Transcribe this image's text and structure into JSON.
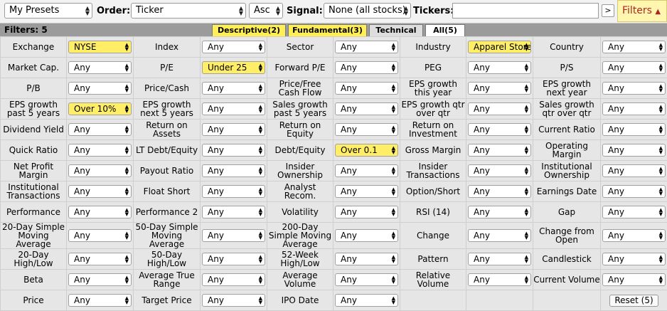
{
  "toolbar": {
    "presets": "My Presets",
    "order_label": "Order:",
    "order_value": "Ticker",
    "direction": "Asc",
    "signal_label": "Signal:",
    "signal_value": "None (all stocks)",
    "tickers_label": "Tickers:",
    "tickers_value": "",
    "go": ">",
    "filters_button": "Filters",
    "filters_accent": "#b0251f"
  },
  "tabs": {
    "count": "Filters: 5",
    "items": [
      "Descriptive(2)",
      "Fundamental(3)",
      "Technical",
      "All(5)"
    ]
  },
  "rows": [
    [
      [
        "Exchange",
        "NYSE",
        true
      ],
      [
        "Index",
        "Any",
        false
      ],
      [
        "Sector",
        "Any",
        false
      ],
      [
        "Industry",
        "Apparel Stores",
        true
      ],
      [
        "Country",
        "Any",
        false
      ]
    ],
    [
      [
        "Market Cap.",
        "Any",
        false
      ],
      [
        "P/E",
        "Under 25",
        true
      ],
      [
        "Forward P/E",
        "Any",
        false
      ],
      [
        "PEG",
        "Any",
        false
      ],
      [
        "P/S",
        "Any",
        false
      ]
    ],
    [
      [
        "P/B",
        "Any",
        false
      ],
      [
        "Price/Cash",
        "Any",
        false
      ],
      [
        "Price/Free Cash Flow",
        "Any",
        false
      ],
      [
        "EPS growth this year",
        "Any",
        false
      ],
      [
        "EPS growth next year",
        "Any",
        false
      ]
    ],
    [
      [
        "EPS growth past 5 years",
        "Over 10%",
        true
      ],
      [
        "EPS growth next 5 years",
        "Any",
        false
      ],
      [
        "Sales growth past 5 years",
        "Any",
        false
      ],
      [
        "EPS growth qtr over qtr",
        "Any",
        false
      ],
      [
        "Sales growth qtr over qtr",
        "Any",
        false
      ]
    ],
    [
      [
        "Dividend Yield",
        "Any",
        false
      ],
      [
        "Return on Assets",
        "Any",
        false
      ],
      [
        "Return on Equity",
        "Any",
        false
      ],
      [
        "Return on Investment",
        "Any",
        false
      ],
      [
        "Current Ratio",
        "Any",
        false
      ]
    ],
    [
      [
        "Quick Ratio",
        "Any",
        false
      ],
      [
        "LT Debt/Equity",
        "Any",
        false
      ],
      [
        "Debt/Equity",
        "Over 0.1",
        true
      ],
      [
        "Gross Margin",
        "Any",
        false
      ],
      [
        "Operating Margin",
        "Any",
        false
      ]
    ],
    [
      [
        "Net Profit Margin",
        "Any",
        false
      ],
      [
        "Payout Ratio",
        "Any",
        false
      ],
      [
        "Insider Ownership",
        "Any",
        false
      ],
      [
        "Insider Transactions",
        "Any",
        false
      ],
      [
        "Institutional Ownership",
        "Any",
        false
      ]
    ],
    [
      [
        "Institutional Transactions",
        "Any",
        false
      ],
      [
        "Float Short",
        "Any",
        false
      ],
      [
        "Analyst Recom.",
        "Any",
        false
      ],
      [
        "Option/Short",
        "Any",
        false
      ],
      [
        "Earnings Date",
        "Any",
        false
      ]
    ],
    [
      [
        "Performance",
        "Any",
        false
      ],
      [
        "Performance 2",
        "Any",
        false
      ],
      [
        "Volatility",
        "Any",
        false
      ],
      [
        "RSI (14)",
        "Any",
        false
      ],
      [
        "Gap",
        "Any",
        false
      ]
    ],
    [
      [
        "20-Day Simple Moving Average",
        "Any",
        false
      ],
      [
        "50-Day Simple Moving Average",
        "Any",
        false
      ],
      [
        "200-Day Simple Moving Average",
        "Any",
        false
      ],
      [
        "Change",
        "Any",
        false
      ],
      [
        "Change from Open",
        "Any",
        false
      ]
    ],
    [
      [
        "20-Day High/Low",
        "Any",
        false
      ],
      [
        "50-Day High/Low",
        "Any",
        false
      ],
      [
        "52-Week High/Low",
        "Any",
        false
      ],
      [
        "Pattern",
        "Any",
        false
      ],
      [
        "Candlestick",
        "Any",
        false
      ]
    ],
    [
      [
        "Beta",
        "Any",
        false
      ],
      [
        "Average True Range",
        "Any",
        false
      ],
      [
        "Average Volume",
        "Any",
        false
      ],
      [
        "Relative Volume",
        "Any",
        false
      ],
      [
        "Current Volume",
        "Any",
        false
      ]
    ],
    [
      [
        "Price",
        "Any",
        false
      ],
      [
        "Target Price",
        "Any",
        false
      ],
      [
        "IPO Date",
        "Any",
        false
      ],
      [
        "",
        null,
        false
      ],
      [
        "",
        null,
        false
      ]
    ]
  ],
  "reset": "Reset (5)"
}
